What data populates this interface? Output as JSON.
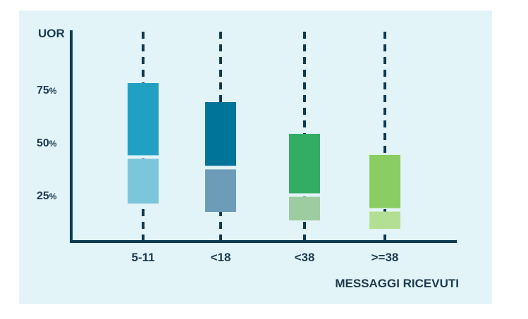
{
  "chart_data": {
    "type": "box",
    "title": "",
    "ylabel": "UOR",
    "xlabel": "MESSAGGI RICEVUTI",
    "y_ticks": [
      {
        "value": 75,
        "num": "75",
        "unit": "%"
      },
      {
        "value": 50,
        "num": "50",
        "unit": "%"
      },
      {
        "value": 25,
        "num": "25",
        "unit": "%"
      }
    ],
    "ylim": [
      2,
      99
    ],
    "grid": false,
    "categories": [
      "5-11",
      "<18",
      "<38",
      ">=38"
    ],
    "boxes": [
      {
        "category": "5-11",
        "q1": 21,
        "median": 43,
        "q3": 78
      },
      {
        "category": "<18",
        "q1": 17,
        "median": 38,
        "q3": 69
      },
      {
        "category": "<38",
        "q1": 13,
        "median": 25,
        "q3": 54
      },
      {
        "category": ">=38",
        "q1": 9,
        "median": 18,
        "q3": 44
      }
    ]
  },
  "colors": {
    "background": "#e2f4f8",
    "axis": "#0d3a52",
    "whisker": "#0d3a52",
    "boxes_upper": [
      "#21a0c3",
      "#007499",
      "#33ad64",
      "#89cd63"
    ],
    "boxes_lower": [
      "#7cc6dc",
      "#6d9cb9",
      "#9ccc9f",
      "#b2df94"
    ]
  }
}
